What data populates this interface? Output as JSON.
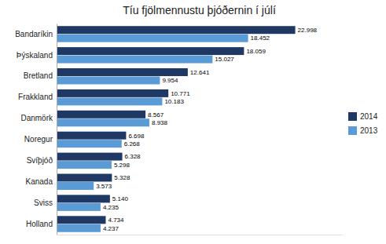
{
  "chart_data": {
    "type": "bar",
    "orientation": "horizontal",
    "title": "Tíu fjölmennustu þjóðernin í júlí",
    "categories": [
      "Bandaríkin",
      "Þýskaland",
      "Bretland",
      "Frakkland",
      "Danmörk",
      "Noregur",
      "Svíþjóð",
      "Kanada",
      "Sviss",
      "Holland"
    ],
    "series": [
      {
        "name": "2014",
        "color": "#1F3864",
        "values": [
          22998,
          18059,
          12641,
          10771,
          8567,
          6698,
          6328,
          5328,
          5140,
          4734
        ],
        "value_labels": [
          "22.998",
          "18.059",
          "12.641",
          "10.771",
          "8.567",
          "6.698",
          "6.328",
          "5.328",
          "5.140",
          "4.734"
        ]
      },
      {
        "name": "2013",
        "color": "#5B9BD5",
        "values": [
          18452,
          15027,
          9954,
          10183,
          8938,
          6268,
          5298,
          3573,
          4235,
          4237
        ],
        "value_labels": [
          "18.452",
          "15.027",
          "9.954",
          "10.183",
          "8.938",
          "6.268",
          "5.298",
          "3.573",
          "4.235",
          "4.237"
        ]
      }
    ],
    "xlim": [
      0,
      27500
    ],
    "tick_labels": "y",
    "data_labels": true,
    "grid": false,
    "legend": "right"
  }
}
